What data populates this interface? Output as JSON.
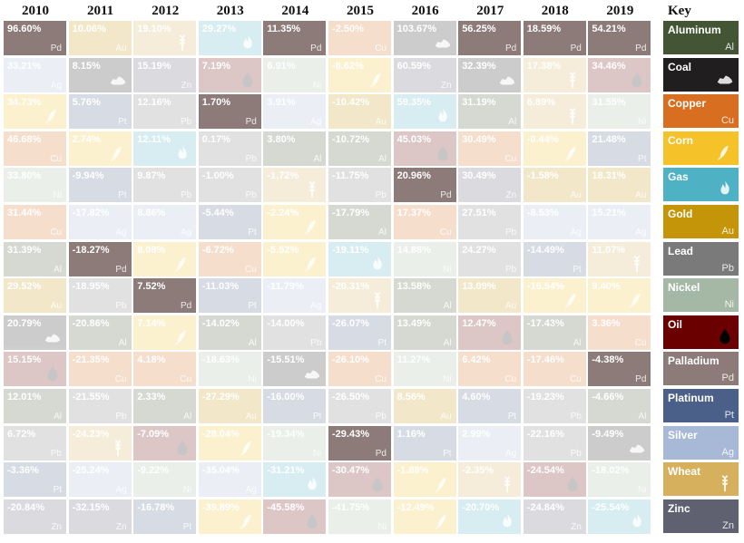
{
  "chart_data": {
    "type": "table",
    "title": "",
    "years": [
      "2010",
      "2011",
      "2012",
      "2013",
      "2014",
      "2015",
      "2016",
      "2017",
      "2018",
      "2019"
    ],
    "key_label": "Key",
    "highlight": "Pd",
    "columns": [
      [
        [
          "96.60%",
          "Pd"
        ],
        [
          "33.21%",
          "Ag"
        ],
        [
          "34.73%",
          "Cn"
        ],
        [
          "46.68%",
          "Cu"
        ],
        [
          "33.80%",
          "Ni"
        ],
        [
          "31.44%",
          "Cu"
        ],
        [
          "31.39%",
          "Al"
        ],
        [
          "29.52%",
          "Au"
        ],
        [
          "20.79%",
          "Cl"
        ],
        [
          "15.15%",
          "Oil"
        ],
        [
          "12.01%",
          "Al"
        ],
        [
          "6.72%",
          "Pb"
        ],
        [
          "-3.36%",
          "Pt"
        ],
        [
          "-20.84%",
          "Zn"
        ]
      ],
      [
        [
          "10.06%",
          "Au"
        ],
        [
          "8.15%",
          "Cl"
        ],
        [
          "5.76%",
          "Pt"
        ],
        [
          "2.74%",
          "Cn"
        ],
        [
          "-9.94%",
          "Pt"
        ],
        [
          "-17.82%",
          "Ag"
        ],
        [
          "-18.27%",
          "Pd"
        ],
        [
          "-18.95%",
          "Pb"
        ],
        [
          "-20.86%",
          "Al"
        ],
        [
          "-21.35%",
          "Cu"
        ],
        [
          "-21.55%",
          "Pb"
        ],
        [
          "-24.23%",
          "Wh"
        ],
        [
          "-25.24%",
          "Ag"
        ],
        [
          "-32.15%",
          "Zn"
        ]
      ],
      [
        [
          "19.10%",
          "Wh"
        ],
        [
          "15.19%",
          "Zn"
        ],
        [
          "12.16%",
          "Pb"
        ],
        [
          "12.11%",
          "Gas"
        ],
        [
          "9.87%",
          "Pb"
        ],
        [
          "8.86%",
          "Ag"
        ],
        [
          "8.08%",
          "Cn"
        ],
        [
          "7.52%",
          "Pd"
        ],
        [
          "7.14%",
          "Cn"
        ],
        [
          "4.18%",
          "Cu"
        ],
        [
          "2.33%",
          "Al"
        ],
        [
          "-7.09%",
          "Oil"
        ],
        [
          "-9.22%",
          "Ni"
        ],
        [
          "-16.78%",
          "Pt"
        ]
      ],
      [
        [
          "29.27%",
          "Gas"
        ],
        [
          "7.19%",
          "Oil"
        ],
        [
          "1.70%",
          "Pd"
        ],
        [
          "0.17%",
          "Pb"
        ],
        [
          "-1.00%",
          "Pb"
        ],
        [
          "-5.44%",
          "Pt"
        ],
        [
          "-6.72%",
          "Cu"
        ],
        [
          "-11.03%",
          "Pt"
        ],
        [
          "-14.02%",
          "Al"
        ],
        [
          "-18.63%",
          "Ni"
        ],
        [
          "-27.29%",
          "Au"
        ],
        [
          "-28.04%",
          "Cn"
        ],
        [
          "-35.04%",
          "Ag"
        ],
        [
          "-39.89%",
          "Cn"
        ]
      ],
      [
        [
          "11.35%",
          "Pd"
        ],
        [
          "6.91%",
          "Ni"
        ],
        [
          "3.91%",
          "Ag"
        ],
        [
          "3.80%",
          "Al"
        ],
        [
          "-1.72%",
          "Wh"
        ],
        [
          "-2.24%",
          "Cn"
        ],
        [
          "-5.52%",
          "Cn"
        ],
        [
          "-11.79%",
          "Ag"
        ],
        [
          "-14.00%",
          "Pb"
        ],
        [
          "-15.51%",
          "Cl"
        ],
        [
          "-16.00%",
          "Pt"
        ],
        [
          "-19.34%",
          "Ni"
        ],
        [
          "-31.21%",
          "Gas"
        ],
        [
          "-45.58%",
          "Oil"
        ]
      ],
      [
        [
          "-2.50%",
          "Cu"
        ],
        [
          "-8.62%",
          "Cn"
        ],
        [
          "-10.42%",
          "Au"
        ],
        [
          "-10.72%",
          "Al"
        ],
        [
          "-11.75%",
          "Pb"
        ],
        [
          "-17.79%",
          "Al"
        ],
        [
          "-19.11%",
          "Gas"
        ],
        [
          "-20.31%",
          "Wh"
        ],
        [
          "-26.07%",
          "Pt"
        ],
        [
          "-26.10%",
          "Cu"
        ],
        [
          "-26.50%",
          "Pb"
        ],
        [
          "-29.43%",
          "Pd"
        ],
        [
          "-30.47%",
          "Oil"
        ],
        [
          "-41.75%",
          "Ni"
        ]
      ],
      [
        [
          "103.67%",
          "Cl"
        ],
        [
          "60.59%",
          "Zn"
        ],
        [
          "59.35%",
          "Gas"
        ],
        [
          "45.03%",
          "Oil"
        ],
        [
          "20.96%",
          "Pd"
        ],
        [
          "17.37%",
          "Cu"
        ],
        [
          "14.88%",
          "Ni"
        ],
        [
          "13.58%",
          "Al"
        ],
        [
          "13.49%",
          "Al"
        ],
        [
          "11.27%",
          "Ni"
        ],
        [
          "8.56%",
          "Au"
        ],
        [
          "1.16%",
          "Pt"
        ],
        [
          "-1.88%",
          "Cn"
        ],
        [
          "-12.49%",
          "Cn"
        ]
      ],
      [
        [
          "56.25%",
          "Pd"
        ],
        [
          "32.39%",
          "Cl"
        ],
        [
          "31.19%",
          "Al"
        ],
        [
          "30.49%",
          "Cu"
        ],
        [
          "30.49%",
          "Zn"
        ],
        [
          "27.51%",
          "Pb"
        ],
        [
          "24.27%",
          "Pb"
        ],
        [
          "13.09%",
          "Au"
        ],
        [
          "12.47%",
          "Oil"
        ],
        [
          "6.42%",
          "Cu"
        ],
        [
          "4.60%",
          "Pt"
        ],
        [
          "2.99%",
          "Ag"
        ],
        [
          "-2.35%",
          "Wh"
        ],
        [
          "-20.70%",
          "Gas"
        ]
      ],
      [
        [
          "18.59%",
          "Pd"
        ],
        [
          "17.38%",
          "Wh"
        ],
        [
          "6.89%",
          "Wh"
        ],
        [
          "-0.44%",
          "Cn"
        ],
        [
          "-1.58%",
          "Au"
        ],
        [
          "-8.53%",
          "Ag"
        ],
        [
          "-14.49%",
          "Pt"
        ],
        [
          "-16.54%",
          "Cn"
        ],
        [
          "-17.43%",
          "Al"
        ],
        [
          "-17.46%",
          "Cu"
        ],
        [
          "-19.23%",
          "Pb"
        ],
        [
          "-22.16%",
          "Pb"
        ],
        [
          "-24.54%",
          "Oil"
        ],
        [
          "-24.84%",
          "Zn"
        ]
      ],
      [
        [
          "54.21%",
          "Pd"
        ],
        [
          "34.46%",
          "Oil"
        ],
        [
          "31.55%",
          "Ni"
        ],
        [
          "21.48%",
          "Pt"
        ],
        [
          "18.31%",
          "Au"
        ],
        [
          "15.21%",
          "Ag"
        ],
        [
          "11.07%",
          "Wh"
        ],
        [
          "9.40%",
          "Cn"
        ],
        [
          "3.36%",
          "Cu"
        ],
        [
          "-4.38%",
          "Pd"
        ],
        [
          "-4.66%",
          "Al"
        ],
        [
          "-9.49%",
          "Cl"
        ],
        [
          "-18.02%",
          "Ni"
        ],
        [
          "-25.54%",
          "Gas"
        ]
      ]
    ],
    "key": [
      {
        "name": "Aluminum",
        "symbol": "Al",
        "code": "Al",
        "color": "#445535",
        "icon": ""
      },
      {
        "name": "Coal",
        "symbol": "",
        "code": "Cl",
        "color": "#211e1f",
        "icon": "coal-icon"
      },
      {
        "name": "Copper",
        "symbol": "Cu",
        "code": "Cu",
        "color": "#d86f20",
        "icon": ""
      },
      {
        "name": "Corn",
        "symbol": "",
        "code": "Cn",
        "color": "#f5c22a",
        "icon": "corn-icon"
      },
      {
        "name": "Gas",
        "symbol": "",
        "code": "Gas",
        "color": "#4fb1c4",
        "icon": "flame-icon"
      },
      {
        "name": "Gold",
        "symbol": "Au",
        "code": "Au",
        "color": "#c59509",
        "icon": ""
      },
      {
        "name": "Lead",
        "symbol": "Pb",
        "code": "Pb",
        "color": "#7a7a7a",
        "icon": ""
      },
      {
        "name": "Nickel",
        "symbol": "Ni",
        "code": "Ni",
        "color": "#a5b8a5",
        "icon": ""
      },
      {
        "name": "Oil",
        "symbol": "",
        "code": "Oil",
        "color": "#6a0000",
        "icon": "oil-drop-icon"
      },
      {
        "name": "Palladium",
        "symbol": "Pd",
        "code": "Pd",
        "color": "#8c7b78",
        "icon": ""
      },
      {
        "name": "Platinum",
        "symbol": "Pt",
        "code": "Pt",
        "color": "#4b6089",
        "icon": ""
      },
      {
        "name": "Silver",
        "symbol": "Ag",
        "code": "Ag",
        "color": "#a7b9d6",
        "icon": ""
      },
      {
        "name": "Wheat",
        "symbol": "",
        "code": "Wh",
        "color": "#d6b05c",
        "icon": "wheat-icon"
      },
      {
        "name": "Zinc",
        "symbol": "Zn",
        "code": "Zn",
        "color": "#5f6170",
        "icon": ""
      }
    ]
  }
}
